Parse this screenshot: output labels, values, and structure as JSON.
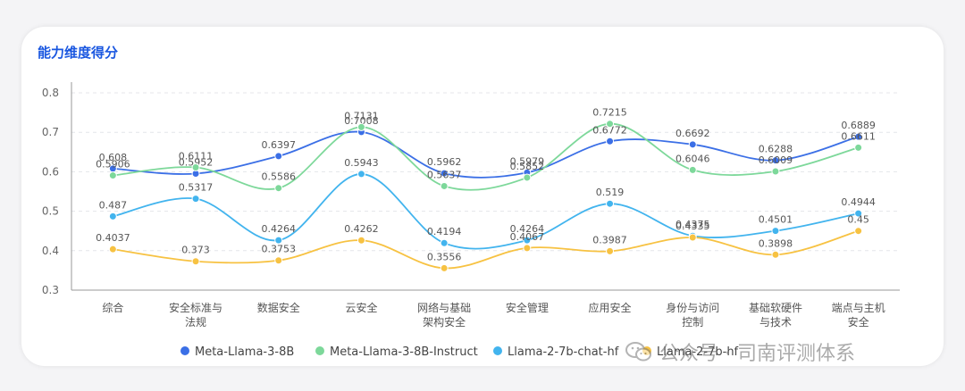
{
  "card": {
    "title": "能力维度得分"
  },
  "chart_data": {
    "type": "line",
    "title": "能力维度得分",
    "xlabel": "",
    "ylabel": "",
    "ylim": [
      0.3,
      0.8
    ],
    "yticks": [
      "0.3",
      "0.4",
      "0.5",
      "0.6",
      "0.7",
      "0.8"
    ],
    "grid": true,
    "legend_position": "bottom",
    "categories": [
      [
        "综合"
      ],
      [
        "安全标准与",
        "法规"
      ],
      [
        "数据安全"
      ],
      [
        "云安全"
      ],
      [
        "网络与基础",
        "架构安全"
      ],
      [
        "安全管理"
      ],
      [
        "应用安全"
      ],
      [
        "身份与访问",
        "控制"
      ],
      [
        "基础软硬件",
        "与技术"
      ],
      [
        "端点与主机",
        "安全"
      ]
    ],
    "series": [
      {
        "name": "Meta-Llama-3-8B",
        "color": "#3b6fe6",
        "values": [
          0.608,
          0.5952,
          0.6397,
          0.7008,
          0.5962,
          0.5979,
          0.6772,
          0.6692,
          0.6288,
          0.6889
        ],
        "labels": [
          "0.608",
          "0.5952",
          "0.6397",
          "0.7008",
          "0.5962",
          "0.5979",
          "0.6772",
          "0.6692",
          "0.6288",
          "0.6889"
        ]
      },
      {
        "name": "Meta-Llama-3-8B-Instruct",
        "color": "#7dd89a",
        "values": [
          0.5906,
          0.6111,
          0.5586,
          0.7131,
          0.5637,
          0.5852,
          0.7215,
          0.6046,
          0.6009,
          0.6611
        ],
        "labels": [
          "0.5906",
          "0.6111",
          "0.5586",
          "0.7131",
          "0.5637",
          "0.5852",
          "0.7215",
          "0.6046",
          "0.6009",
          "0.6611"
        ]
      },
      {
        "name": "Llama-2-7b-chat-hf",
        "color": "#42b4ee",
        "values": [
          0.487,
          0.5317,
          0.4264,
          0.5943,
          0.4194,
          0.4264,
          0.519,
          0.4375,
          0.4501,
          0.4944
        ],
        "labels": [
          "0.487",
          "0.5317",
          "0.4264",
          "0.5943",
          "0.4194",
          "0.4264",
          "0.519",
          "0.4375",
          "0.4501",
          "0.4944"
        ]
      },
      {
        "name": "Llama-2-7b-hf",
        "color": "#f7c242",
        "values": [
          0.4037,
          0.373,
          0.3753,
          0.4262,
          0.3556,
          0.4067,
          0.3987,
          0.4335,
          0.3898,
          0.45
        ],
        "labels": [
          "0.4037",
          "0.373",
          "0.3753",
          "0.4262",
          "0.3556",
          "0.4067",
          "0.3987",
          "0.4335",
          "0.3898",
          "0.45"
        ]
      }
    ]
  },
  "watermark": {
    "text": "公众号 · 司南评测体系",
    "icon": "wechat-icon"
  }
}
